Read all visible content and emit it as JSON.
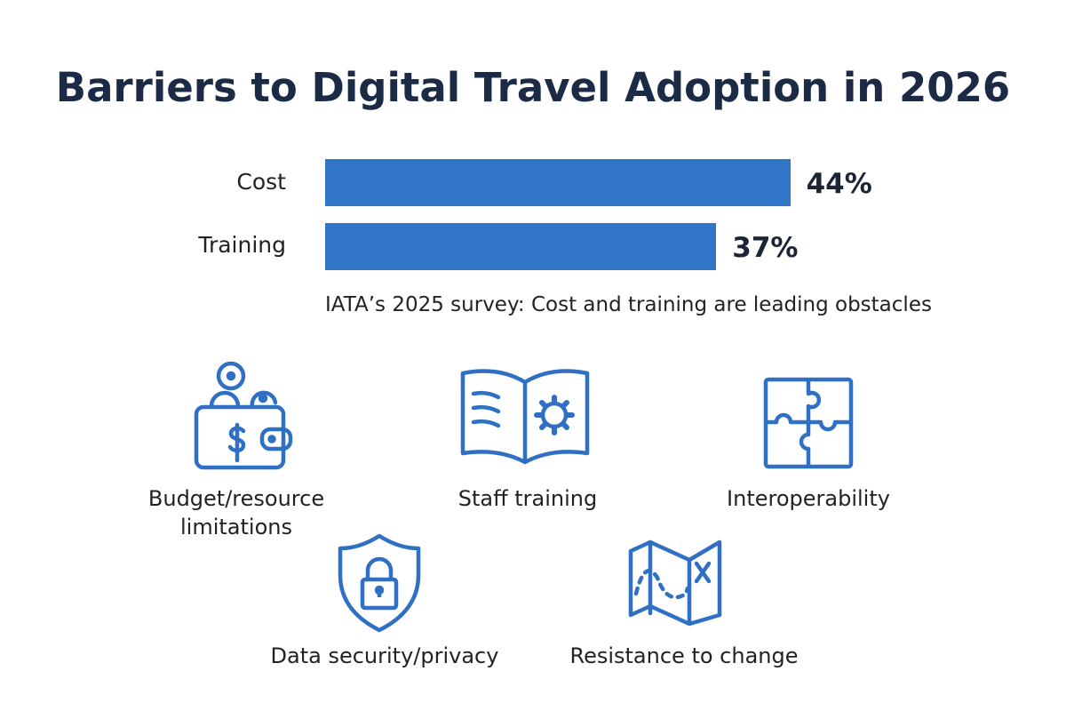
{
  "title": "Barriers to Digital Travel Adoption in 2026",
  "chart_data": {
    "type": "bar",
    "orientation": "horizontal",
    "categories": [
      "Cost",
      "Training"
    ],
    "values": [
      44,
      37
    ],
    "value_labels": [
      "44%",
      "37%"
    ],
    "unit": "%",
    "color": "#3276c8",
    "grid": false,
    "note": "IATA’s 2025 survey: Cost and training are leading obstacles"
  },
  "barriers": [
    {
      "label": "Budget/resource limitations",
      "icon": "wallet-coins-icon"
    },
    {
      "label": "Staff training",
      "icon": "book-gear-icon"
    },
    {
      "label": "Interoperability",
      "icon": "puzzle-icon"
    },
    {
      "label": "Data security/privacy",
      "icon": "shield-lock-icon"
    },
    {
      "label": "Resistance to change",
      "icon": "map-route-icon"
    }
  ],
  "icon_color": "#2f6fc4"
}
